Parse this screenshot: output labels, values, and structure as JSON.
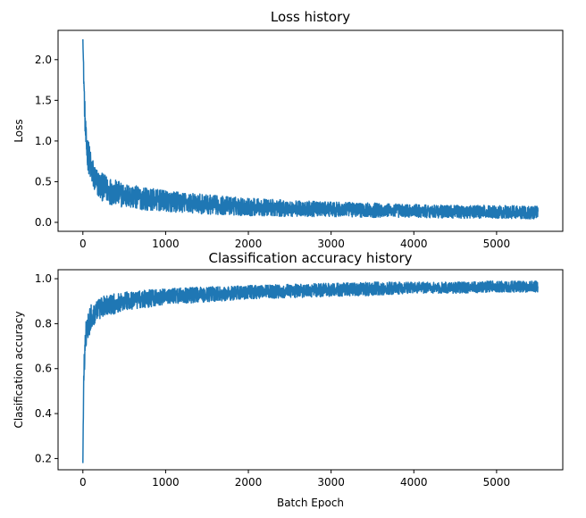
{
  "chart_data": [
    {
      "type": "line",
      "title": "Loss history",
      "xlabel": "",
      "ylabel": "Loss",
      "xlim": [
        -300,
        5800
      ],
      "ylim": [
        -0.11,
        2.36
      ],
      "xticks": [
        0,
        1000,
        2000,
        3000,
        4000,
        5000
      ],
      "yticks": [
        0.0,
        0.5,
        1.0,
        1.5,
        2.0
      ],
      "xtick_labels": [
        "0",
        "1000",
        "2000",
        "3000",
        "4000",
        "5000"
      ],
      "ytick_labels": [
        "0.0",
        "0.5",
        "1.0",
        "1.5",
        "2.0"
      ],
      "grid": false,
      "color": "#1f77b4",
      "series": [
        {
          "x": [
            0,
            10,
            20,
            30,
            40,
            60,
            80,
            100,
            150,
            200,
            300,
            400,
            500,
            750,
            1000,
            1500,
            2000,
            2500,
            3000,
            3500,
            4000,
            4500,
            5000,
            5500
          ],
          "values": [
            2.25,
            1.8,
            1.45,
            1.15,
            0.95,
            0.85,
            0.75,
            0.65,
            0.52,
            0.45,
            0.4,
            0.36,
            0.33,
            0.29,
            0.26,
            0.22,
            0.19,
            0.17,
            0.16,
            0.15,
            0.14,
            0.13,
            0.13,
            0.12
          ],
          "noise": [
            0.0,
            0.12,
            0.16,
            0.18,
            0.2,
            0.2,
            0.2,
            0.2,
            0.18,
            0.17,
            0.17,
            0.16,
            0.15,
            0.14,
            0.13,
            0.12,
            0.11,
            0.1,
            0.09,
            0.09,
            0.08,
            0.08,
            0.08,
            0.08
          ]
        }
      ]
    },
    {
      "type": "line",
      "title": "Classification accuracy history",
      "xlabel": "Batch Epoch",
      "ylabel": "Clasification accuracy",
      "xlim": [
        -300,
        5800
      ],
      "ylim": [
        0.15,
        1.04
      ],
      "xticks": [
        0,
        1000,
        2000,
        3000,
        4000,
        5000
      ],
      "yticks": [
        0.2,
        0.4,
        0.6,
        0.8,
        1.0
      ],
      "xtick_labels": [
        "0",
        "1000",
        "2000",
        "3000",
        "4000",
        "5000"
      ],
      "ytick_labels": [
        "0.2",
        "0.4",
        "0.6",
        "0.8",
        "1.0"
      ],
      "grid": false,
      "color": "#1f77b4",
      "series": [
        {
          "x": [
            0,
            10,
            20,
            30,
            40,
            60,
            80,
            100,
            150,
            200,
            300,
            400,
            500,
            750,
            1000,
            1500,
            2000,
            2500,
            3000,
            3500,
            4000,
            4500,
            5000,
            5500
          ],
          "values": [
            0.18,
            0.55,
            0.65,
            0.72,
            0.76,
            0.79,
            0.81,
            0.83,
            0.85,
            0.87,
            0.88,
            0.89,
            0.9,
            0.91,
            0.92,
            0.93,
            0.94,
            0.945,
            0.95,
            0.955,
            0.96,
            0.96,
            0.965,
            0.965
          ],
          "noise": [
            0.0,
            0.06,
            0.06,
            0.06,
            0.06,
            0.06,
            0.06,
            0.055,
            0.05,
            0.05,
            0.045,
            0.045,
            0.04,
            0.04,
            0.035,
            0.035,
            0.03,
            0.03,
            0.03,
            0.03,
            0.025,
            0.025,
            0.025,
            0.025
          ]
        }
      ]
    }
  ]
}
